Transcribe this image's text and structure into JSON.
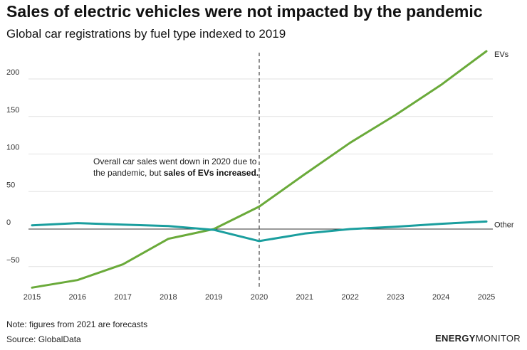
{
  "chart_data": {
    "type": "line",
    "title": "Sales of electric vehicles were not impacted by the pandemic",
    "subtitle": "Global car registrations by fuel type indexed to 2019",
    "x": [
      2015,
      2016,
      2017,
      2018,
      2019,
      2020,
      2021,
      2022,
      2023,
      2024,
      2025
    ],
    "x_tick_labels": [
      "2015",
      "2016",
      "2017",
      "2018",
      "2019",
      "2020",
      "2021",
      "2022",
      "2023",
      "2024",
      "2025"
    ],
    "y_ticks": [
      -50,
      0,
      50,
      100,
      150,
      200
    ],
    "y_tick_labels": [
      "−50",
      "0",
      "50",
      "100",
      "150",
      "200"
    ],
    "ylim": [
      -80,
      245
    ],
    "grid": true,
    "series": [
      {
        "name": "EVs",
        "color": "#6aaa3a",
        "values": [
          -78,
          -68,
          -47,
          -13,
          0,
          30,
          73,
          115,
          152,
          192,
          237
        ]
      },
      {
        "name": "Other",
        "color": "#1a9e9e",
        "values": [
          5,
          8,
          6,
          4,
          -1,
          -16,
          -6,
          0,
          3,
          7,
          10
        ]
      }
    ],
    "vertical_marker": {
      "x": 2020,
      "style": "dashed"
    },
    "annotation": {
      "line1": "Overall car sales went down in 2020 due to",
      "line2_prefix": "the pandemic, but ",
      "line2_bold": "sales of EVs increased."
    },
    "note": "Note: figures from 2021 are forecasts",
    "source": "Source: GlobalData"
  },
  "brand": {
    "part1": "ENERGY",
    "part2": "MONITOR"
  }
}
